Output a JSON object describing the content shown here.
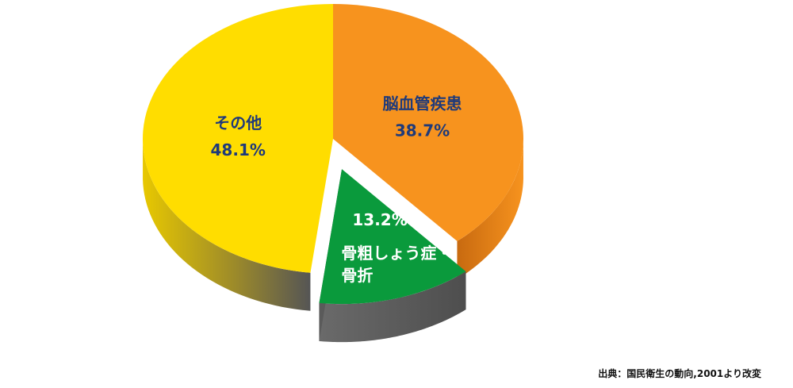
{
  "chart_data": {
    "type": "pie",
    "style": "3d-exploded",
    "slices": [
      {
        "name": "脳血管疾患",
        "value": 38.7,
        "label": "38.7%",
        "color": "#F7931E",
        "label_color": "#1F3A7A"
      },
      {
        "name": "骨粗しょう症・骨折",
        "value": 13.2,
        "label": "13.2%",
        "color": "#0A9A3C",
        "label_color": "#FFFFFF",
        "exploded": true
      },
      {
        "name": "その他",
        "value": 48.1,
        "label": "48.1%",
        "color": "#FFDD00",
        "label_color": "#1F3A7A"
      }
    ]
  },
  "source": "出典：国民衛生の動向,2001より改変"
}
